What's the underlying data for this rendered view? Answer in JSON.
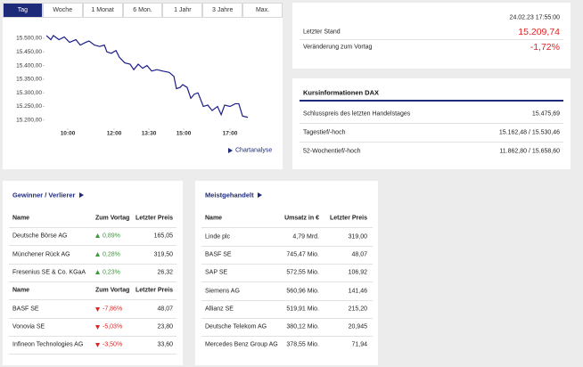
{
  "tabs": [
    "Tag",
    "Woche",
    "1 Monat",
    "6 Mon.",
    "1 Jahr",
    "3 Jahre",
    "Max."
  ],
  "chart_data": {
    "type": "line",
    "color": "#1c1c8a",
    "grid": false,
    "x": [
      9.08,
      9.27,
      9.38,
      9.62,
      9.85,
      10.08,
      10.35,
      10.54,
      10.77,
      10.92,
      11.15,
      11.38,
      11.58,
      11.69,
      11.88,
      12.08,
      12.23,
      12.46,
      12.69,
      12.85,
      13.04,
      13.23,
      13.42,
      13.62,
      13.85,
      14.08,
      14.38,
      14.58,
      14.69,
      14.85,
      14.96,
      15.15,
      15.31,
      15.46,
      15.62,
      15.85,
      16.04,
      16.23,
      16.46,
      16.62,
      16.77,
      17.0,
      17.23,
      17.38,
      17.54,
      17.77
    ],
    "values": [
      15510,
      15495,
      15510,
      15495,
      15505,
      15485,
      15495,
      15475,
      15485,
      15490,
      15475,
      15470,
      15475,
      15450,
      15445,
      15455,
      15430,
      15410,
      15405,
      15385,
      15405,
      15390,
      15400,
      15380,
      15385,
      15380,
      15375,
      15360,
      15315,
      15320,
      15330,
      15320,
      15280,
      15295,
      15300,
      15250,
      15255,
      15235,
      15250,
      15220,
      15255,
      15250,
      15260,
      15260,
      15215,
      15210
    ],
    "xlim": [
      9,
      18.8
    ],
    "ylim": [
      15170,
      15530
    ],
    "xticks": [
      {
        "value": 10,
        "label": "10:00"
      },
      {
        "value": 12,
        "label": "12:00"
      },
      {
        "value": 13.5,
        "label": "13:30"
      },
      {
        "value": 15,
        "label": "15:00"
      },
      {
        "value": 17,
        "label": "17:00"
      }
    ],
    "yticks": [
      {
        "value": 15200,
        "label": "15.200,00"
      },
      {
        "value": 15250,
        "label": "15.250,00"
      },
      {
        "value": 15300,
        "label": "15.300,00"
      },
      {
        "value": 15350,
        "label": "15.350,00"
      },
      {
        "value": 15400,
        "label": "15.400,00"
      },
      {
        "value": 15450,
        "label": "15.450,00"
      },
      {
        "value": 15500,
        "label": "15.500,00"
      }
    ]
  },
  "chart_link": "Chartanalyse",
  "quote": {
    "timestamp": "24.02.23 17:55:00",
    "rows": [
      [
        "Letzter Stand",
        "15.209,74"
      ],
      [
        "Veränderung zum Vortag",
        "-1,72%"
      ]
    ]
  },
  "info": {
    "title": "Kursinformationen DAX",
    "rows": [
      [
        "Schlusspreis des letzten Handelstages",
        "15.475,69"
      ],
      [
        "Tagestief/-hoch",
        "15.162,48 / 15.530,46"
      ],
      [
        "52-Wochentief/-hoch",
        "11.862,80 / 15.658,60"
      ]
    ]
  },
  "movers": {
    "title": "Gewinner / Verlierer",
    "groups": [
      {
        "color": "#3a9a3a",
        "header": [
          "Name",
          "Zum Vortag",
          "Letzter Preis"
        ],
        "rows": [
          [
            "Deutsche Börse AG",
            "0,89%",
            "165,05"
          ],
          [
            "Münchener Rück AG",
            "0,28%",
            "319,50"
          ],
          [
            "Fresenius SE & Co. KGaA",
            "0,23%",
            "26,32"
          ]
        ]
      },
      {
        "color": "#e02424",
        "header": [
          "Name",
          "Zum Vortag",
          "Letzter Preis"
        ],
        "rows": [
          [
            "BASF SE",
            "-7,86%",
            "48,07"
          ],
          [
            "Vonovia SE",
            "-5,03%",
            "23,80"
          ],
          [
            "Infineon Technologies AG",
            "-3,50%",
            "33,60"
          ]
        ]
      }
    ]
  },
  "most_traded": {
    "title": "Meistgehandelt",
    "header": [
      "Name",
      "Umsatz in €",
      "Letzter Preis"
    ],
    "rows": [
      [
        "Linde plc",
        "4,79 Mrd.",
        "319,00"
      ],
      [
        "BASF SE",
        "745,47 Mio.",
        "48,07"
      ],
      [
        "SAP SE",
        "572,55 Mio.",
        "106,92"
      ],
      [
        "Siemens AG",
        "560,96 Mio.",
        "141,46"
      ],
      [
        "Allianz SE",
        "519,91 Mio.",
        "215,20"
      ],
      [
        "Deutsche Telekom AG",
        "380,12 Mio.",
        "20,945"
      ],
      [
        "Mercedes Benz Group AG",
        "378,55 Mio.",
        "71,94"
      ]
    ]
  }
}
